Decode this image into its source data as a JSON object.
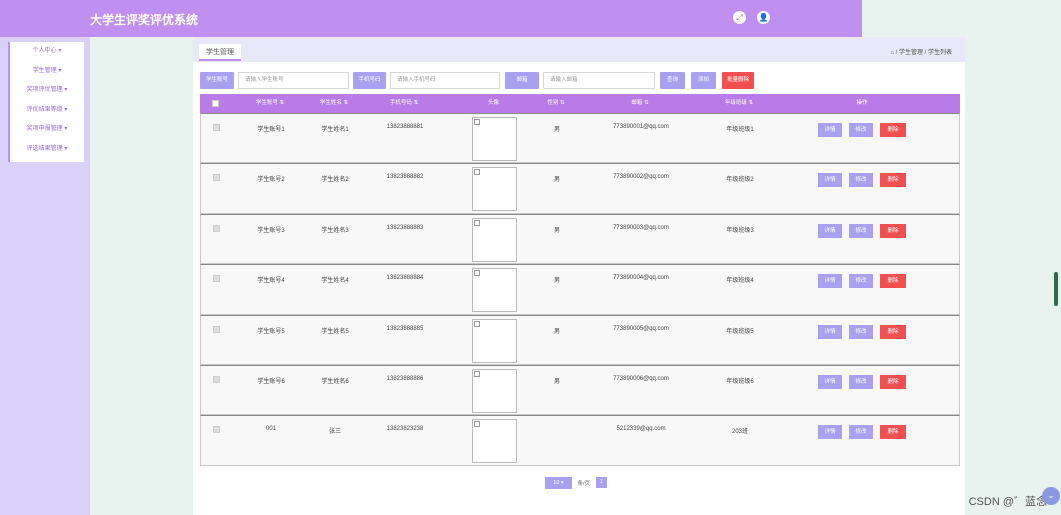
{
  "app": {
    "title": "大学生评奖评优系统"
  },
  "header_icons": [
    {
      "icon": "fullscreen-icon",
      "glyph": "⤢"
    },
    {
      "icon": "user-icon",
      "glyph": "👤"
    }
  ],
  "sidebar": {
    "items": [
      {
        "label": "个人中心 ▾"
      },
      {
        "label": "学生管理 ▾"
      },
      {
        "label": "奖项评优管理 ▾"
      },
      {
        "label": "评优结果等级 ▾"
      },
      {
        "label": "奖项申报管理 ▾"
      },
      {
        "label": "评选结果管理 ▾"
      }
    ]
  },
  "tabs": [
    {
      "label": "学生管理"
    }
  ],
  "breadcrumb": {
    "home_glyph": "⌂",
    "text": " / 学生管理 / 学生列表"
  },
  "search": {
    "student_no_label": "学生账号",
    "student_no_placeholder": "请输入学生账号",
    "phone_label": "手机号码",
    "phone_placeholder": "请输入手机号码",
    "email_label": "邮箱",
    "email_placeholder": "请输入邮箱",
    "query_button": "查询",
    "add_button": "添加",
    "batch_delete_button": "批量删除"
  },
  "table": {
    "columns": [
      "学生账号 ⇅",
      "学生姓名 ⇅",
      "手机号码 ⇅",
      "头像",
      "性别 ⇅",
      "邮箱 ⇅",
      "年级班级 ⇅",
      "操作"
    ],
    "rows": [
      {
        "account": "学生账号1",
        "name": "学生姓名1",
        "phone": "13823888881",
        "gender": "男",
        "email": "773890001@qq.com",
        "class": "年级班级1"
      },
      {
        "account": "学生账号2",
        "name": "学生姓名2",
        "phone": "13823888882",
        "gender": "男",
        "email": "773890002@qq.com",
        "class": "年级班级2"
      },
      {
        "account": "学生账号3",
        "name": "学生姓名3",
        "phone": "13823888883",
        "gender": "男",
        "email": "773890003@qq.com",
        "class": "年级班级3"
      },
      {
        "account": "学生账号4",
        "name": "学生姓名4",
        "phone": "13823888884",
        "gender": "男",
        "email": "773890004@qq.com",
        "class": "年级班级4"
      },
      {
        "account": "学生账号5",
        "name": "学生姓名5",
        "phone": "13823888885",
        "gender": "男",
        "email": "773890005@qq.com",
        "class": "年级班级5"
      },
      {
        "account": "学生账号6",
        "name": "学生姓名6",
        "phone": "13823888886",
        "gender": "男",
        "email": "773890006@qq.com",
        "class": "年级班级6"
      },
      {
        "account": "001",
        "name": "张三",
        "phone": "13823823238",
        "gender": "",
        "email": "5212339@qq.com",
        "class": "203班"
      }
    ],
    "row_actions": {
      "view": "详情",
      "edit": "修改",
      "delete": "删除"
    }
  },
  "pagination": {
    "page_size": "10",
    "total_text": "条/页",
    "current_page": "1"
  },
  "watermark": "CSDN @゛蓝念",
  "colors": {
    "accent": "#c090f0",
    "header_row": "#b87be8",
    "action": "#a9a0f0",
    "delete": "#f05050"
  }
}
